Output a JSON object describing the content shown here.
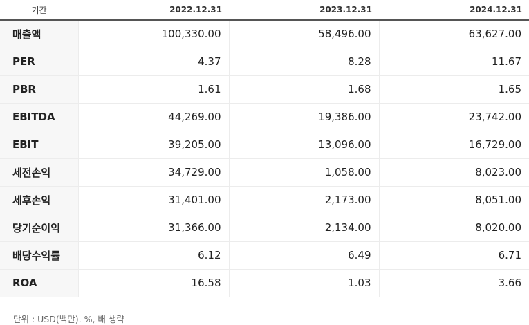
{
  "table": {
    "header_label": "기간",
    "periods": [
      "2022.12.31",
      "2023.12.31",
      "2024.12.31"
    ],
    "rows": [
      {
        "label": "매출액",
        "values": [
          "100,330.00",
          "58,496.00",
          "63,627.00"
        ]
      },
      {
        "label": "PER",
        "values": [
          "4.37",
          "8.28",
          "11.67"
        ]
      },
      {
        "label": "PBR",
        "values": [
          "1.61",
          "1.68",
          "1.65"
        ]
      },
      {
        "label": "EBITDA",
        "values": [
          "44,269.00",
          "19,386.00",
          "23,742.00"
        ]
      },
      {
        "label": "EBIT",
        "values": [
          "39,205.00",
          "13,096.00",
          "16,729.00"
        ]
      },
      {
        "label": "세전손익",
        "values": [
          "34,729.00",
          "1,058.00",
          "8,023.00"
        ]
      },
      {
        "label": "세후손익",
        "values": [
          "31,401.00",
          "2,173.00",
          "8,051.00"
        ]
      },
      {
        "label": "당기순이익",
        "values": [
          "31,366.00",
          "2,134.00",
          "8,020.00"
        ]
      },
      {
        "label": "배당수익률",
        "values": [
          "6.12",
          "6.49",
          "6.71"
        ]
      },
      {
        "label": "ROA",
        "values": [
          "16.58",
          "1.03",
          "3.66"
        ]
      }
    ]
  },
  "footnote": "단위 : USD(백만). %, 배 생략"
}
